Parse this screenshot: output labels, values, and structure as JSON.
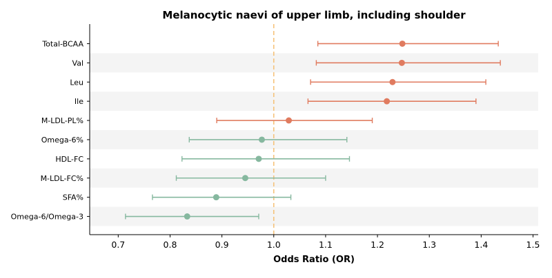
{
  "chart_data": {
    "type": "forest",
    "title": "Melanocytic naevi of upper limb, including shoulder",
    "xlabel": "Odds Ratio (OR)",
    "ylabel": "",
    "xlim": [
      0.645,
      1.51
    ],
    "xticks": [
      "0.7",
      "0.8",
      "0.9",
      "1.0",
      "1.1",
      "1.2",
      "1.3",
      "1.4",
      "1.5"
    ],
    "reference_line": 1.0,
    "grid": false,
    "alternating_row_shading": true,
    "rows": [
      {
        "label": "Total-BCAA",
        "or": 1.248,
        "lower": 1.085,
        "upper": 1.433,
        "direction": "positive"
      },
      {
        "label": "Val",
        "or": 1.247,
        "lower": 1.082,
        "upper": 1.437,
        "direction": "positive"
      },
      {
        "label": "Leu",
        "or": 1.229,
        "lower": 1.071,
        "upper": 1.409,
        "direction": "positive"
      },
      {
        "label": "Ile",
        "or": 1.218,
        "lower": 1.066,
        "upper": 1.39,
        "direction": "positive"
      },
      {
        "label": "M-LDL-PL%",
        "or": 1.029,
        "lower": 0.89,
        "upper": 1.19,
        "direction": "positive"
      },
      {
        "label": "Omega-6%",
        "or": 0.977,
        "lower": 0.837,
        "upper": 1.141,
        "direction": "negative"
      },
      {
        "label": "HDL-FC",
        "or": 0.971,
        "lower": 0.823,
        "upper": 1.146,
        "direction": "negative"
      },
      {
        "label": "M-LDL-FC%",
        "or": 0.945,
        "lower": 0.812,
        "upper": 1.1,
        "direction": "negative"
      },
      {
        "label": "SFA%",
        "or": 0.889,
        "lower": 0.766,
        "upper": 1.033,
        "direction": "negative"
      },
      {
        "label": "Omega-6/Omega-3",
        "or": 0.833,
        "lower": 0.714,
        "upper": 0.971,
        "direction": "negative"
      }
    ],
    "colors": {
      "positive": "#e07b5f",
      "negative": "#86b89f",
      "reference_line": "#f5c27a",
      "row_shade": "#f4f4f4",
      "axis": "#000000"
    }
  }
}
